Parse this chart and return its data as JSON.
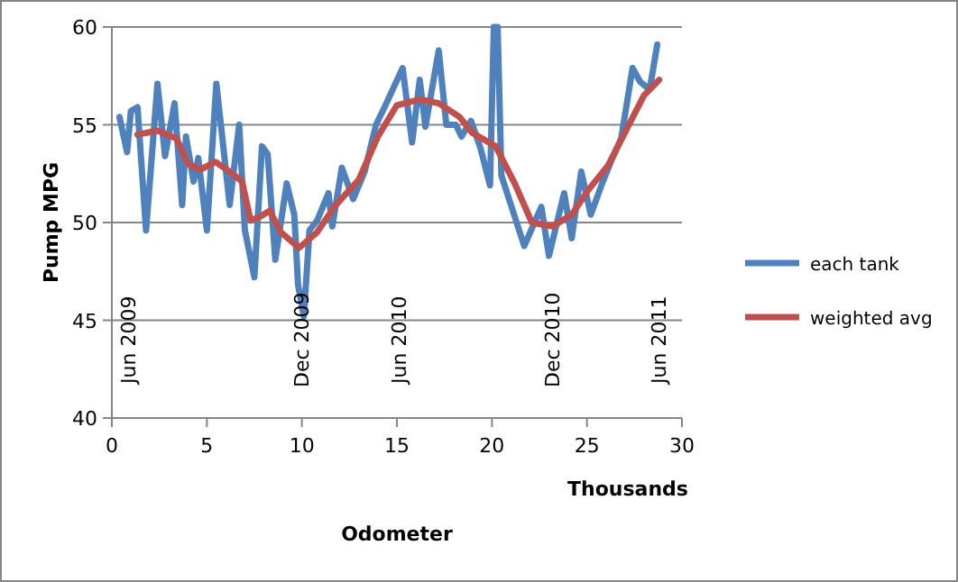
{
  "chart_data": {
    "type": "line",
    "xlabel": "Odometer",
    "ylabel": "Pump MPG",
    "xlim": [
      0,
      30
    ],
    "xticks": [
      0,
      5,
      10,
      15,
      20,
      25,
      30
    ],
    "ylim": [
      40,
      60
    ],
    "yticks": [
      40,
      45,
      50,
      55,
      60
    ],
    "grid": "y",
    "legend": "right",
    "marker": "none",
    "line_style": "solid",
    "series": [
      {
        "name": "each tank",
        "color": "#4f81bd",
        "x": [
          0.4,
          0.8,
          1.0,
          1.35,
          1.8,
          2.4,
          2.8,
          3.3,
          3.7,
          3.9,
          4.3,
          4.55,
          5.0,
          5.5,
          6.2,
          6.7,
          7.0,
          7.5,
          7.9,
          8.2,
          8.6,
          9.2,
          9.6,
          9.8,
          10.1,
          10.4,
          10.8,
          11.4,
          11.6,
          12.1,
          12.7,
          13.3,
          13.9,
          14.4,
          15.3,
          15.8,
          16.2,
          16.5,
          17.2,
          17.6,
          18.1,
          18.4,
          18.9,
          19.4,
          19.9,
          20.1,
          20.3,
          20.5,
          21.3,
          21.7,
          22.6,
          23.0,
          23.8,
          24.2,
          24.7,
          25.2,
          25.8,
          26.3,
          26.8,
          27.4,
          27.8,
          28.3,
          28.7
        ],
        "values": [
          55.4,
          53.6,
          55.7,
          55.9,
          49.6,
          57.1,
          53.4,
          56.1,
          50.9,
          54.4,
          52.1,
          53.3,
          49.6,
          57.1,
          50.9,
          55.0,
          49.6,
          47.2,
          53.9,
          53.5,
          48.1,
          52.0,
          50.4,
          46.8,
          45.2,
          49.6,
          50.1,
          51.5,
          49.8,
          52.8,
          51.2,
          52.6,
          55.0,
          56.0,
          57.9,
          54.1,
          57.3,
          54.9,
          58.8,
          55.0,
          55.0,
          54.4,
          55.2,
          53.8,
          51.9,
          60,
          60,
          52.4,
          50.0,
          48.8,
          50.8,
          48.3,
          51.5,
          49.2,
          52.6,
          50.4,
          52.0,
          53.2,
          54.3,
          57.9,
          57.2,
          56.8,
          59.1
        ]
      },
      {
        "name": "weighted avg",
        "color": "#c0504d",
        "x": [
          1.35,
          2.4,
          3.4,
          4.0,
          4.65,
          5.45,
          6.2,
          6.85,
          7.3,
          7.8,
          8.3,
          8.9,
          9.85,
          10.8,
          11.7,
          13.0,
          14.0,
          15.0,
          16.2,
          17.2,
          18.3,
          18.95,
          20.2,
          21.2,
          22.1,
          23.2,
          24.2,
          25.1,
          26.1,
          27.0,
          28.0,
          28.8
        ],
        "values": [
          54.5,
          54.7,
          54.3,
          53.0,
          52.7,
          53.1,
          52.6,
          52.1,
          50.1,
          50.3,
          50.6,
          49.5,
          48.7,
          49.5,
          50.8,
          52.2,
          54.4,
          56.0,
          56.3,
          56.1,
          55.4,
          54.6,
          53.9,
          52.0,
          50.0,
          49.8,
          50.4,
          51.7,
          52.9,
          54.6,
          56.5,
          57.3
        ]
      }
    ],
    "annotations": [
      "Jun 2009",
      "Dec 2009",
      "Jun 2010",
      "Dec 2010",
      "Jun 2011",
      "Thousands"
    ]
  }
}
